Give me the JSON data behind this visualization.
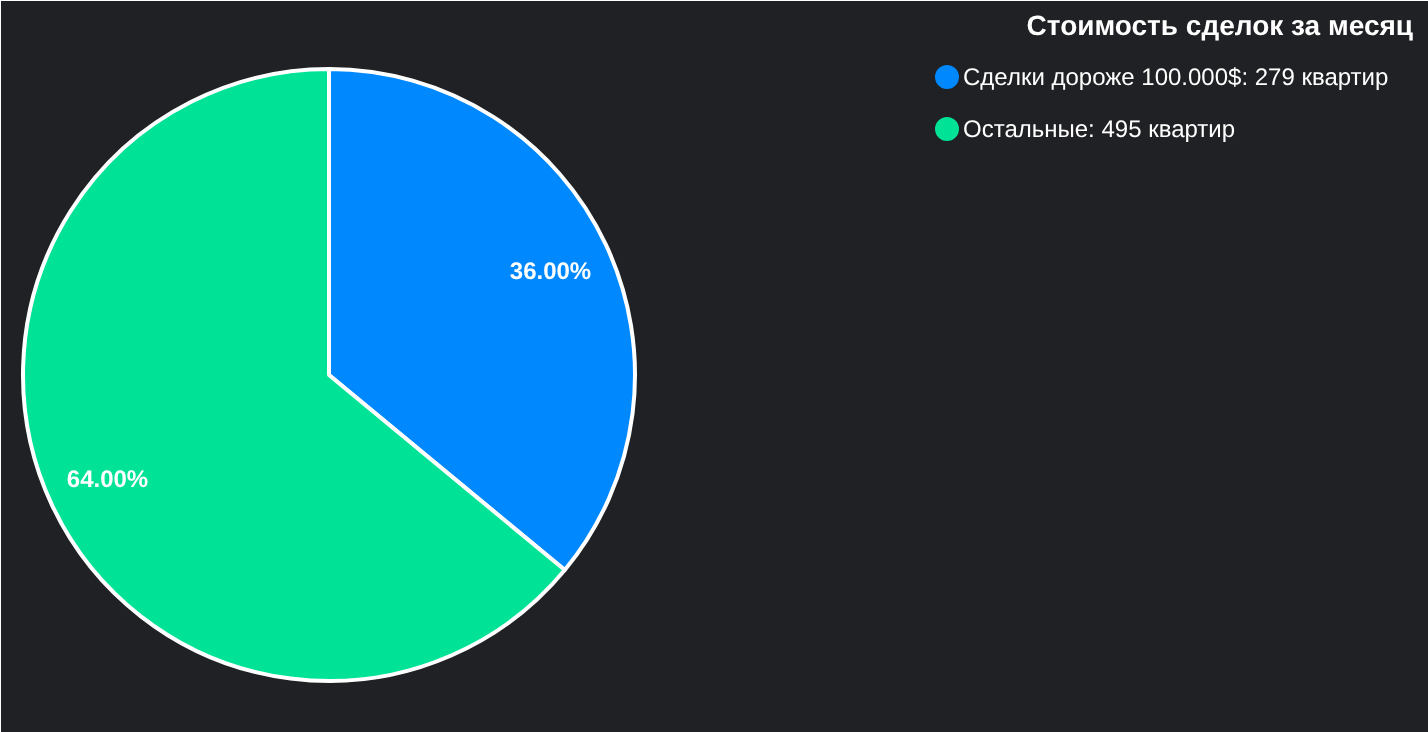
{
  "chart_data": {
    "type": "pie",
    "title": "Стоимость сделок за месяц",
    "categories": [
      "Сделки дороже 100.000$: 279 квартир",
      "Остальные: 495 квартир"
    ],
    "values": [
      36,
      64
    ],
    "colors": [
      "#0088ff",
      "#00e396"
    ],
    "value_labels": [
      "36.00%",
      "64.00%"
    ],
    "legend": "top right"
  }
}
